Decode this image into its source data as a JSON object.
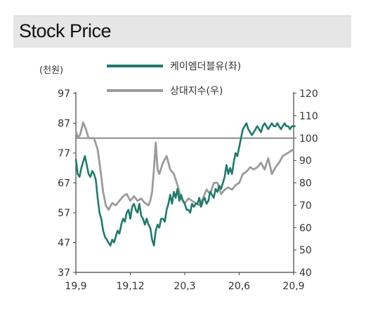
{
  "header": {
    "title": "Stock Price"
  },
  "chart_data": {
    "type": "line",
    "title": "Stock Price",
    "left_axis_unit": "(천원)",
    "x_ticks": [
      "19,9",
      "19,12",
      "20,3",
      "20,6",
      "20,9"
    ],
    "y_left": {
      "ticks": [
        97,
        87,
        77,
        67,
        57,
        47,
        37
      ],
      "lim": [
        37,
        97
      ]
    },
    "y_right": {
      "ticks": [
        120,
        110,
        100,
        90,
        80,
        70,
        60,
        50,
        40
      ],
      "lim": [
        40,
        120
      ]
    },
    "reference_line": {
      "axis": "right",
      "value": 100
    },
    "series": [
      {
        "name": "케이엠더블유(좌)",
        "axis": "left",
        "color": "#1f7a6c",
        "x": [
          0,
          0.1,
          0.2,
          0.3,
          0.4,
          0.5,
          0.6,
          0.7,
          0.8,
          0.9,
          1.0,
          1.1,
          1.2,
          1.3,
          1.4,
          1.5,
          1.6,
          1.7,
          1.8,
          1.9,
          2.0,
          2.1,
          2.2,
          2.3,
          2.4,
          2.5,
          2.6,
          2.7,
          2.8,
          2.9,
          3.0,
          3.1,
          3.2,
          3.3,
          3.4,
          3.5,
          3.6,
          3.7,
          3.8,
          3.9,
          4.0,
          4.1,
          4.2,
          4.3,
          4.4,
          4.5,
          4.6,
          4.7,
          4.8,
          4.9,
          5.0,
          5.1,
          5.2,
          5.3,
          5.4,
          5.5,
          5.6,
          5.7,
          5.8,
          5.9,
          6.0,
          6.1,
          6.2,
          6.3,
          6.4,
          6.5,
          6.6,
          6.7,
          6.8,
          6.9,
          7.0,
          7.1,
          7.2,
          7.3,
          7.4,
          7.5,
          7.6,
          7.7,
          7.8,
          7.9,
          8.0,
          8.1,
          8.2,
          8.3,
          8.4,
          8.5,
          8.6,
          8.7,
          8.8,
          8.9,
          9.0,
          9.1,
          9.2,
          9.3,
          9.4,
          9.5,
          9.6,
          9.7,
          9.8,
          9.9,
          10.0,
          10.1,
          10.2,
          10.3,
          10.4,
          10.5,
          10.6,
          10.7,
          10.8,
          10.9,
          11.0,
          11.1,
          11.2,
          11.3,
          11.4,
          11.5,
          11.6,
          11.7,
          11.8,
          11.9,
          12.0,
          12.1
        ],
        "values": [
          75,
          70,
          69,
          72,
          74,
          76,
          73,
          70,
          69,
          71,
          70,
          68,
          62,
          57,
          55,
          51,
          49,
          48,
          47,
          46,
          48,
          47,
          49,
          51,
          50,
          53,
          55,
          54,
          57,
          58,
          55,
          59,
          60,
          58,
          57,
          60,
          56,
          55,
          53,
          55,
          53,
          52,
          48,
          46,
          51,
          53,
          52,
          55,
          55,
          54,
          58,
          60,
          63,
          60,
          64,
          62,
          65,
          61,
          63,
          61,
          60,
          58,
          58,
          57,
          60,
          59,
          60,
          60,
          62,
          59,
          61,
          62,
          60,
          61,
          64,
          63,
          62,
          65,
          64,
          66,
          65,
          67,
          69,
          73,
          70,
          72,
          70,
          74,
          77,
          76,
          79,
          82,
          85,
          86,
          87,
          85,
          84,
          83,
          84,
          85,
          86,
          85,
          84,
          86,
          87,
          86,
          85,
          86,
          87,
          86,
          86,
          87,
          86,
          85,
          86,
          87,
          86,
          86,
          85,
          86,
          86,
          86
        ],
        "values_note": ""
      },
      {
        "name": "상대지수(우)",
        "axis": "right",
        "color": "#9b9b9b",
        "x": [
          0,
          0.12,
          0.25,
          0.4,
          0.55,
          0.7,
          0.85,
          1.0,
          1.2,
          1.35,
          1.5,
          1.65,
          1.8,
          2.0,
          2.2,
          2.4,
          2.6,
          2.8,
          3.0,
          3.2,
          3.4,
          3.6,
          3.8,
          4.0,
          4.1,
          4.2,
          4.3,
          4.4,
          4.5,
          4.6,
          4.8,
          5.0,
          5.2,
          5.4,
          5.6,
          5.8,
          6.0,
          6.2,
          6.4,
          6.6,
          6.8,
          7.0,
          7.2,
          7.4,
          7.6,
          7.8,
          8.0,
          8.2,
          8.4,
          8.6,
          8.8,
          9.0,
          9.2,
          9.4,
          9.6,
          9.8,
          10.0,
          10.2,
          10.4,
          10.6,
          10.8,
          11.0,
          11.2,
          11.4,
          11.6,
          11.8,
          12.0
        ],
        "values": [
          103,
          100,
          102,
          107,
          104,
          100,
          100,
          100,
          95,
          86,
          76,
          70,
          68,
          71,
          70,
          72,
          74,
          75,
          72,
          74,
          72,
          73,
          71,
          70,
          72,
          76,
          86,
          98,
          86,
          84,
          89,
          92,
          86,
          84,
          79,
          73,
          71,
          73,
          72,
          71,
          70,
          73,
          77,
          75,
          80,
          80,
          75,
          77,
          78,
          77,
          79,
          80,
          84,
          85,
          87,
          86,
          87,
          89,
          86,
          91,
          84,
          87,
          89,
          92,
          93,
          94,
          95
        ],
        "values_note": ""
      }
    ]
  }
}
